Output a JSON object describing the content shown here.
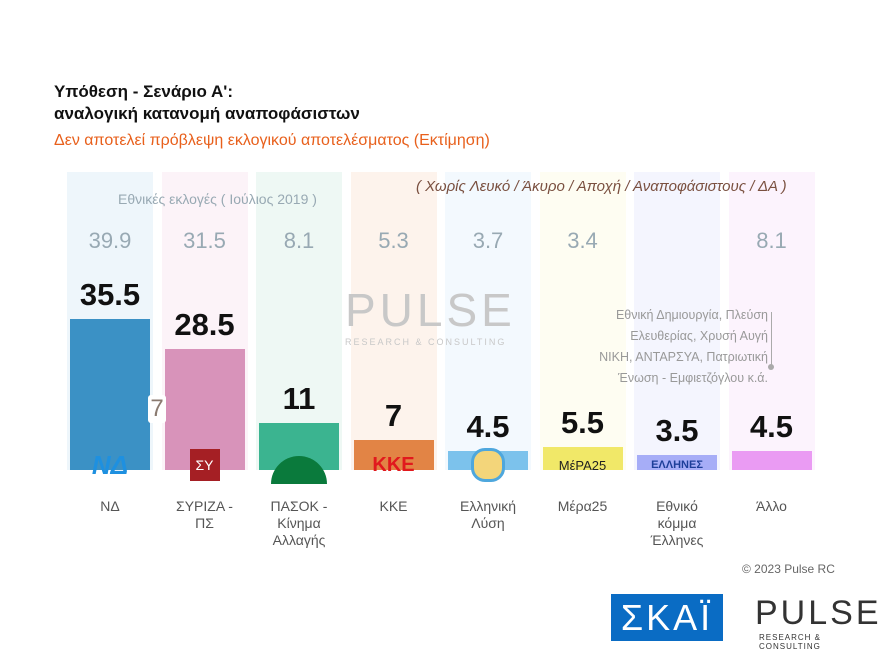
{
  "header": {
    "title_line1": "Υπόθεση - Σενάριο Α':",
    "title_line2": "αναλογική κατανομή αναποφάσιστων",
    "subtitle": "Δεν αποτελεί πρόβλεψη εκλογικού αποτελέσματος   (Εκτίμηση)"
  },
  "chart_data": {
    "type": "bar",
    "title": "Υπόθεση - Σενάριο Α': αναλογική κατανομή αναποφάσιστων",
    "note": "( Χωρίς Λευκό / Άκυρο / Αποχή / Αναποφάσιστους / ΔΑ )",
    "previous_label": "Εθνικές εκλογές  ( Ιούλιος 2019 )",
    "categories": [
      "ΝΔ",
      "ΣΥΡΙΖΑ - ΠΣ",
      "ΠΑΣΟΚ - Κίνημα Αλλαγής",
      "ΚΚΕ",
      "Ελληνική Λύση",
      "Μέρα25",
      "Εθνικό κόμμα Έλληνες",
      "Άλλο"
    ],
    "values": [
      35.5,
      28.5,
      11,
      7,
      4.5,
      5.5,
      3.5,
      4.5
    ],
    "values_label": [
      "35.5",
      "28.5",
      "11",
      "7",
      "4.5",
      "5.5",
      "3.5",
      "4.5"
    ],
    "previous": [
      "39.9",
      "31.5",
      "8.1",
      "5.3",
      "3.7",
      "3.4",
      "",
      "8.1"
    ],
    "colors": [
      "#0070b3",
      "#cc74a6",
      "#009e6f",
      "#d95f0e",
      "#55b0e6",
      "#ede13a",
      "#8c96f5",
      "#e57ef0"
    ],
    "tints": [
      "#eef6fb",
      "#fcf3f8",
      "#eef8f4",
      "#fdf3ec",
      "#f3f9fe",
      "#fefdf2",
      "#f4f5fe",
      "#fcf3fd"
    ],
    "gap_label": "7",
    "other_note": [
      "Εθνική Δημιουργία, Πλεύση",
      "Ελευθερίας, Χρυσή Αυγή",
      "ΝΙΚΗ, ΑΝΤΑΡΣΥΑ, Πατριωτική",
      "Ένωση - Εμφιετζόγλου   κ.ά."
    ],
    "ylim": [
      0,
      40
    ]
  },
  "logos": {
    "nd": "ΝΔ",
    "syriza": "ΣΥ",
    "kke": "ΚΚΕ",
    "mera": "ΜέΡΑ25",
    "ellines": "ΕΛΛΗΝΕΣ"
  },
  "footer": {
    "copyright": "© 2023 Pulse RC",
    "skai": "ΣΚΑΪ",
    "pulse": "PULSE",
    "pulse_sub": "RESEARCH & CONSULTING",
    "watermark": "PULSE",
    "watermark_sub": "RESEARCH & CONSULTING"
  }
}
